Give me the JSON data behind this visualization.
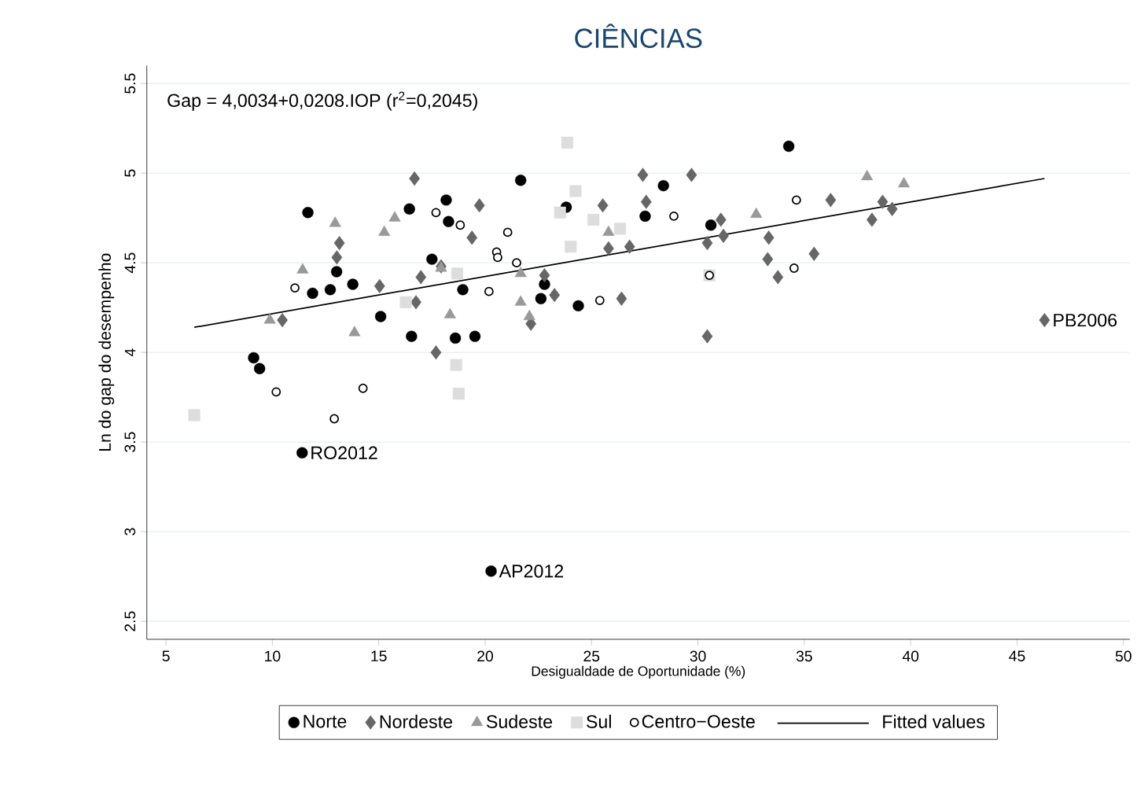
{
  "chart_data": {
    "type": "scatter",
    "title": "CIÊNCIAS",
    "xlabel": "Desigualdade de Oportunidade (%)",
    "ylabel": "Ln do gap do desempenho",
    "xlim": [
      4.1,
      50.3
    ],
    "ylim": [
      2.4,
      5.6
    ],
    "xticks": [
      5,
      10,
      15,
      20,
      25,
      30,
      35,
      40,
      45,
      50
    ],
    "yticks": [
      2.5,
      3,
      3.5,
      4,
      4.5,
      5,
      5.5
    ],
    "grid": "y",
    "legend": "bottom",
    "annotations": [
      "Gap = 4,0034+0,0208.IOP (r$^{2}$=0,2045)",
      {
        "text": "RO2012",
        "x": 11.4,
        "y": 3.44
      },
      {
        "text": "AP2012",
        "x": 20.28,
        "y": 2.78
      },
      {
        "text": "PB2006",
        "x": 46.29,
        "y": 4.18
      }
    ],
    "series": [
      {
        "name": "Norte",
        "color": "#000000",
        "marker": "circle",
        "x": [
          11.67,
          9.12,
          9.4,
          11.89,
          12.72,
          13.02,
          13.78,
          15.09,
          16.44,
          16.54,
          17.5,
          18.17,
          18.28,
          18.6,
          18.95,
          19.52,
          21.67,
          23.81,
          22.62,
          22.79,
          24.38,
          27.52,
          28.38,
          30.61,
          34.27,
          11.4,
          20.28
        ],
        "values": [
          4.78,
          3.97,
          3.91,
          4.33,
          4.35,
          4.45,
          4.38,
          4.2,
          4.8,
          4.09,
          4.52,
          4.85,
          4.73,
          4.08,
          4.35,
          4.09,
          4.96,
          4.81,
          4.3,
          4.38,
          4.26,
          4.76,
          4.93,
          4.71,
          5.15,
          3.44,
          2.78
        ]
      },
      {
        "name": "Nordeste",
        "color": "#666666",
        "marker": "diamond",
        "x": [
          16.68,
          13.15,
          13.03,
          10.47,
          15.04,
          16.98,
          16.75,
          17.69,
          17.93,
          19.73,
          19.38,
          22.79,
          23.26,
          22.15,
          25.53,
          25.8,
          26.79,
          26.41,
          27.41,
          27.57,
          29.7,
          30.44,
          30.44,
          31.08,
          31.2,
          33.33,
          33.28,
          33.76,
          35.46,
          36.24,
          38.18,
          38.68,
          39.13,
          46.29
        ],
        "values": [
          4.97,
          4.61,
          4.53,
          4.18,
          4.37,
          4.42,
          4.28,
          4.0,
          4.48,
          4.82,
          4.64,
          4.43,
          4.32,
          4.16,
          4.82,
          4.58,
          4.59,
          4.3,
          4.99,
          4.84,
          4.99,
          4.61,
          4.09,
          4.74,
          4.65,
          4.64,
          4.52,
          4.42,
          4.55,
          4.85,
          4.74,
          4.84,
          4.8,
          4.18
        ]
      },
      {
        "name": "Sudeste",
        "color": "#999999",
        "marker": "triangle",
        "x": [
          12.95,
          11.42,
          9.88,
          13.86,
          15.26,
          15.75,
          17.93,
          18.35,
          21.67,
          21.67,
          22.08,
          25.8,
          32.74,
          37.95,
          39.68
        ],
        "values": [
          4.72,
          4.46,
          4.18,
          4.11,
          4.67,
          4.75,
          4.47,
          4.21,
          4.28,
          4.44,
          4.2,
          4.67,
          4.77,
          4.98,
          4.94
        ]
      },
      {
        "name": "Sul",
        "color": "#dddddd",
        "marker": "square",
        "x": [
          6.33,
          16.27,
          18.69,
          18.64,
          18.76,
          23.86,
          24.25,
          23.52,
          24.02,
          25.09,
          26.34,
          30.54
        ],
        "values": [
          3.65,
          4.28,
          4.44,
          3.93,
          3.77,
          5.17,
          4.9,
          4.78,
          4.59,
          4.74,
          4.69,
          4.43
        ]
      },
      {
        "name": "Centro−Oeste",
        "color": "#ffffff",
        "marker": "circle",
        "x": [
          11.06,
          10.18,
          12.91,
          14.26,
          17.69,
          18.83,
          21.06,
          20.54,
          20.59,
          21.48,
          20.18,
          25.39,
          28.87,
          30.54,
          34.63,
          34.52
        ],
        "values": [
          4.36,
          3.78,
          3.63,
          3.8,
          4.78,
          4.71,
          4.67,
          4.56,
          4.53,
          4.5,
          4.34,
          4.29,
          4.76,
          4.43,
          4.85,
          4.47
        ]
      },
      {
        "name": "Fitted values",
        "type": "line",
        "color": "#000000",
        "marker": "none",
        "line_style": "solid",
        "x": [
          6.33,
          46.29
        ],
        "values": [
          4.14,
          4.97
        ]
      }
    ]
  }
}
